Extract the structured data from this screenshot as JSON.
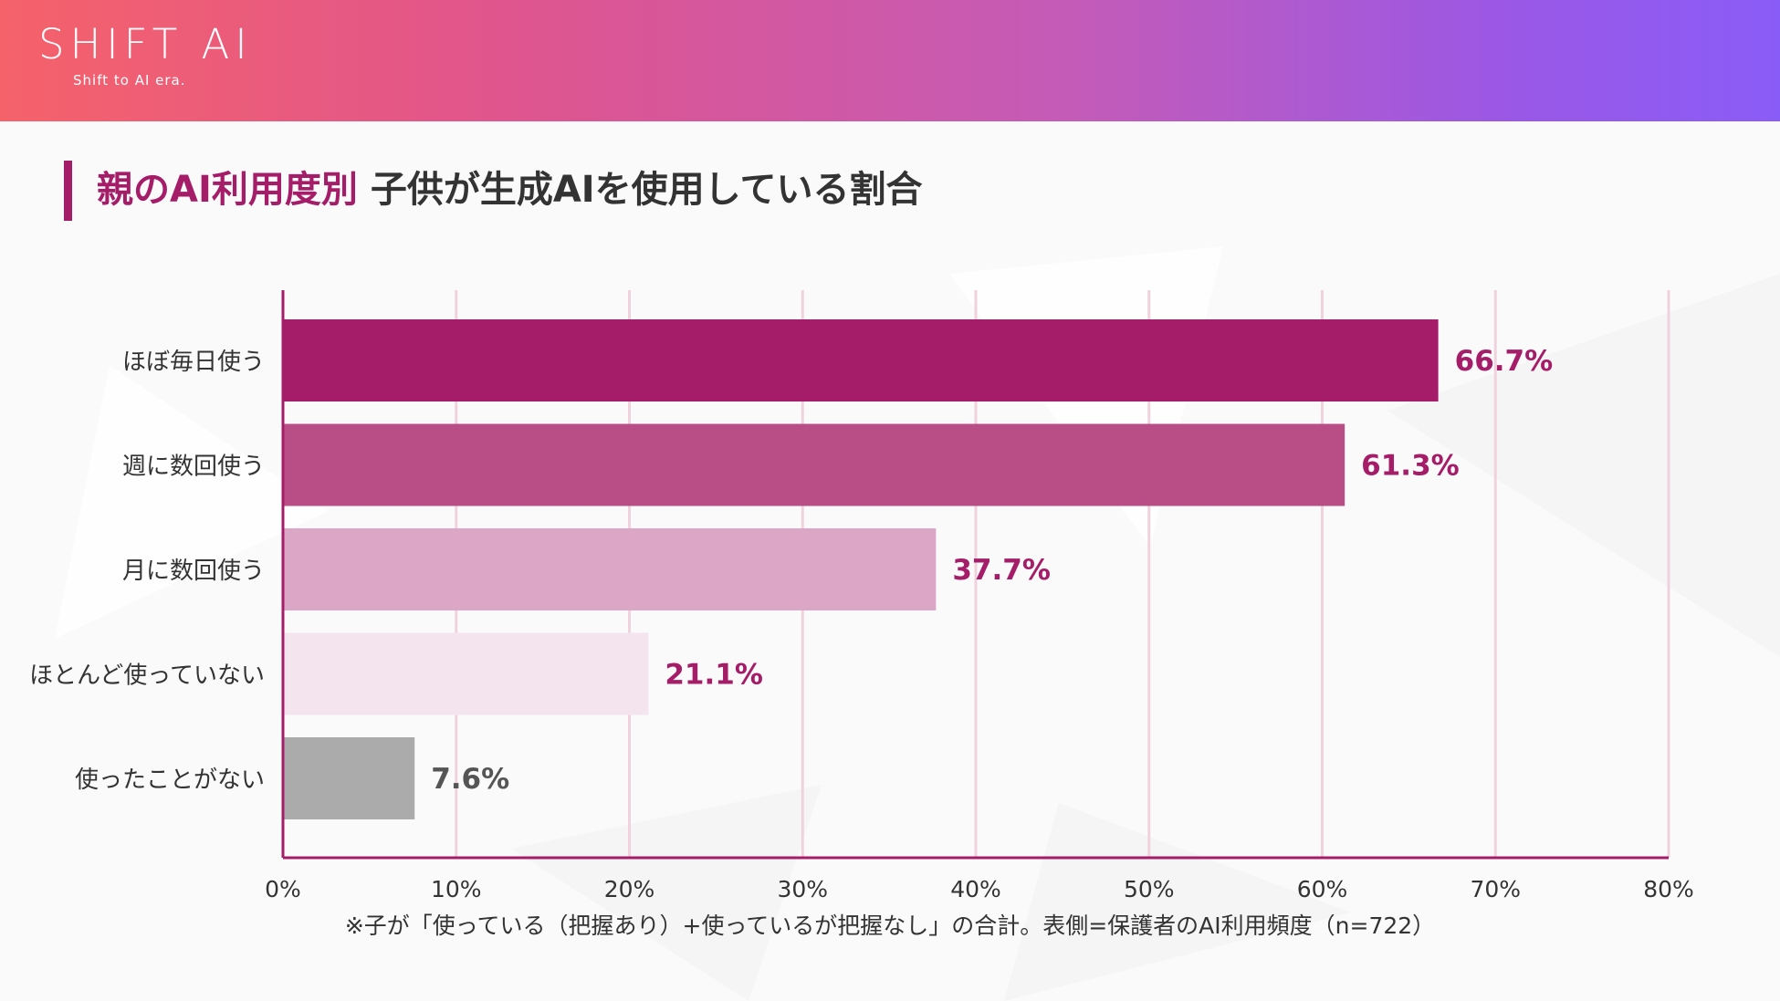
{
  "header": {
    "logo": "SHIFT AI",
    "tagline": "Shift to AI era."
  },
  "colors": {
    "accent": "#a51c68",
    "header_gradient": [
      "#f5626a",
      "#8a5cf7"
    ],
    "grid": "#f0d2de",
    "axis": "#a51c68",
    "bars": [
      "#a51c68",
      "#b94e86",
      "#dca6c7",
      "#f4e4ee",
      "#ababab"
    ],
    "labels": [
      "#a51c68",
      "#a51c68",
      "#a51c68",
      "#a51c68",
      "#555555"
    ]
  },
  "chart_data": {
    "type": "bar",
    "orientation": "horizontal",
    "title_accent": "親のAI利用度別",
    "title_main": "子供が生成AIを使用している割合",
    "categories": [
      "ほぼ毎日使う",
      "週に数回使う",
      "月に数回使う",
      "ほとんど使っていない",
      "使ったことがない"
    ],
    "values": [
      66.7,
      61.3,
      37.7,
      21.1,
      7.6
    ],
    "value_labels": [
      "66.7%",
      "61.3%",
      "37.7%",
      "21.1%",
      "7.6%"
    ],
    "xlim": [
      0,
      80
    ],
    "x_ticks": [
      "0%",
      "10%",
      "20%",
      "30%",
      "40%",
      "50%",
      "60%",
      "70%",
      "80%"
    ],
    "grid": true,
    "legend": "none",
    "footnote": "※子が「使っている（把握あり）+使っているが把握なし」の合計。表側=保護者のAI利用頻度（n=722）"
  }
}
